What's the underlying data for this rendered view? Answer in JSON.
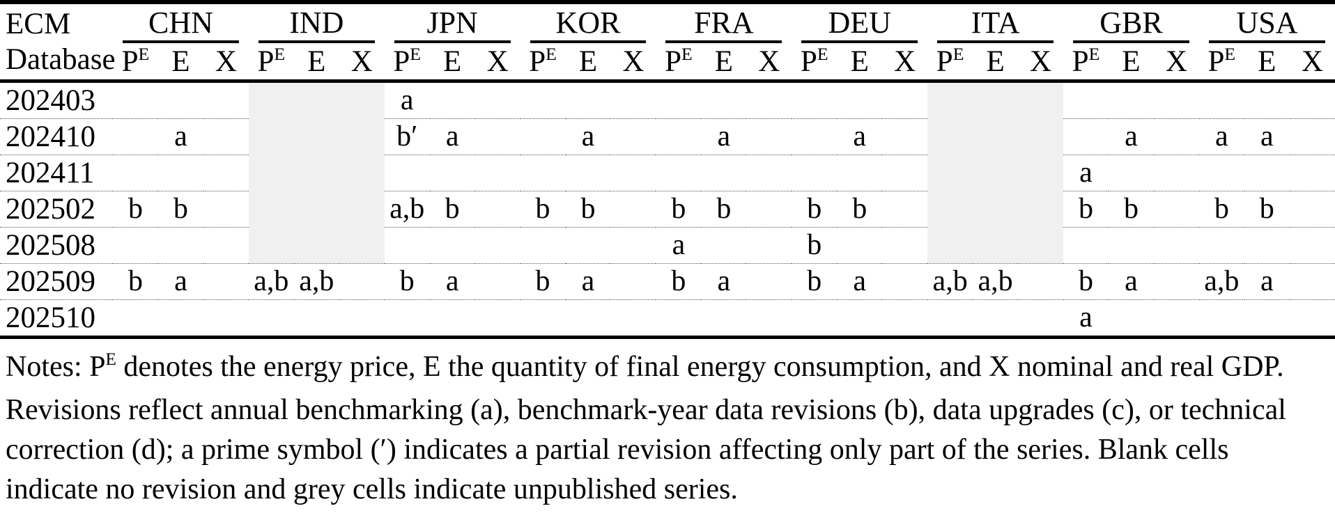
{
  "colors": {
    "unpublished_cell": "#f0f0f0",
    "table_border": "#000000"
  },
  "table": {
    "corner": {
      "line1": "ECM",
      "line2": "Database"
    },
    "countries": [
      "CHN",
      "IND",
      "JPN",
      "KOR",
      "FRA",
      "DEU",
      "ITA",
      "GBR",
      "USA"
    ],
    "subcolumns": [
      {
        "base": "P",
        "sup": "E"
      },
      {
        "base": "E",
        "sup": ""
      },
      {
        "base": "X",
        "sup": ""
      }
    ],
    "rows": [
      {
        "label": "202403",
        "grey_groups": [
          1,
          6
        ],
        "groups": [
          [
            "",
            "",
            ""
          ],
          [
            "",
            "",
            ""
          ],
          [
            "a",
            "",
            ""
          ],
          [
            "",
            "",
            ""
          ],
          [
            "",
            "",
            ""
          ],
          [
            "",
            "",
            ""
          ],
          [
            "",
            "",
            ""
          ],
          [
            "",
            "",
            ""
          ],
          [
            "",
            "",
            ""
          ]
        ]
      },
      {
        "label": "202410",
        "grey_groups": [
          1,
          6
        ],
        "groups": [
          [
            "",
            "a",
            ""
          ],
          [
            "",
            "",
            ""
          ],
          [
            "b′",
            "a",
            ""
          ],
          [
            "",
            "a",
            ""
          ],
          [
            "",
            "a",
            ""
          ],
          [
            "",
            "a",
            ""
          ],
          [
            "",
            "",
            ""
          ],
          [
            "",
            "a",
            ""
          ],
          [
            "a",
            "a",
            ""
          ]
        ]
      },
      {
        "label": "202411",
        "grey_groups": [
          1,
          6
        ],
        "groups": [
          [
            "",
            "",
            ""
          ],
          [
            "",
            "",
            ""
          ],
          [
            "",
            "",
            ""
          ],
          [
            "",
            "",
            ""
          ],
          [
            "",
            "",
            ""
          ],
          [
            "",
            "",
            ""
          ],
          [
            "",
            "",
            ""
          ],
          [
            "a",
            "",
            ""
          ],
          [
            "",
            "",
            ""
          ]
        ]
      },
      {
        "label": "202502",
        "grey_groups": [
          1,
          6
        ],
        "groups": [
          [
            "b",
            "b",
            ""
          ],
          [
            "",
            "",
            ""
          ],
          [
            "a,b",
            "b",
            ""
          ],
          [
            "b",
            "b",
            ""
          ],
          [
            "b",
            "b",
            ""
          ],
          [
            "b",
            "b",
            ""
          ],
          [
            "",
            "",
            ""
          ],
          [
            "b",
            "b",
            ""
          ],
          [
            "b",
            "b",
            ""
          ]
        ]
      },
      {
        "label": "202508",
        "grey_groups": [
          1,
          6
        ],
        "groups": [
          [
            "",
            "",
            ""
          ],
          [
            "",
            "",
            ""
          ],
          [
            "",
            "",
            ""
          ],
          [
            "",
            "",
            ""
          ],
          [
            "a",
            "",
            ""
          ],
          [
            "b",
            "",
            ""
          ],
          [
            "",
            "",
            ""
          ],
          [
            "",
            "",
            ""
          ],
          [
            "",
            "",
            ""
          ]
        ]
      },
      {
        "label": "202509",
        "grey_groups": [],
        "groups": [
          [
            "b",
            "a",
            ""
          ],
          [
            "a,b",
            "a,b",
            ""
          ],
          [
            "b",
            "a",
            ""
          ],
          [
            "b",
            "a",
            ""
          ],
          [
            "b",
            "a",
            ""
          ],
          [
            "b",
            "a",
            ""
          ],
          [
            "a,b",
            "a,b",
            ""
          ],
          [
            "b",
            "a",
            ""
          ],
          [
            "a,b",
            "a",
            ""
          ]
        ]
      },
      {
        "label": "202510",
        "grey_groups": [],
        "groups": [
          [
            "",
            "",
            ""
          ],
          [
            "",
            "",
            ""
          ],
          [
            "",
            "",
            ""
          ],
          [
            "",
            "",
            ""
          ],
          [
            "",
            "",
            ""
          ],
          [
            "",
            "",
            ""
          ],
          [
            "",
            "",
            ""
          ],
          [
            "a",
            "",
            ""
          ],
          [
            "",
            "",
            ""
          ]
        ]
      }
    ]
  },
  "notes": {
    "prefix": "Notes: P",
    "sup": "E",
    "body": " denotes the energy price, E the quantity of final energy consumption, and X nominal and real GDP. Revisions reflect annual benchmarking (a), benchmark-year data revisions (b), data upgrades (c), or technical correction (d); a prime symbol (′) indicates a partial revision affecting only part of the series. Blank cells indicate no revision and grey cells indicate unpublished series."
  }
}
